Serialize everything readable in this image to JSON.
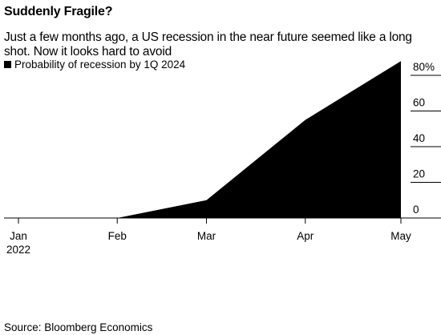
{
  "title": "Suddenly Fragile?",
  "subtitle": "Just a few months ago, a US recession in the near future seemed like a long shot. Now it looks hard to avoid",
  "source": "Source: Bloomberg Economics",
  "chart_data": {
    "type": "area",
    "legend": [
      {
        "name": "Probability of recession by 1Q 2024",
        "color": "#000000"
      }
    ],
    "series": [
      {
        "name": "Probability of recession by 1Q 2024",
        "color": "#000000",
        "x": [
          "2022-01-01",
          "2022-02-01",
          "2022-03-01",
          "2022-04-01",
          "2022-05-01"
        ],
        "values": [
          0,
          0,
          10,
          55,
          88
        ]
      }
    ],
    "x_ticks": [
      {
        "value": "2022-01-01",
        "label": "Jan",
        "sublabel": "2022"
      },
      {
        "value": "2022-02-01",
        "label": "Feb"
      },
      {
        "value": "2022-03-01",
        "label": "Mar"
      },
      {
        "value": "2022-04-01",
        "label": "Apr"
      },
      {
        "value": "2022-05-01",
        "label": "May"
      }
    ],
    "y_ticks": [
      {
        "value": 0,
        "label": "0"
      },
      {
        "value": 20,
        "label": "20"
      },
      {
        "value": 40,
        "label": "40"
      },
      {
        "value": 60,
        "label": "60"
      },
      {
        "value": 80,
        "label": "80%"
      }
    ],
    "xlim": [
      "2022-01-01",
      "2022-05-01"
    ],
    "ylim": [
      0,
      80
    ],
    "y_axis_side": "right",
    "grid": false
  }
}
